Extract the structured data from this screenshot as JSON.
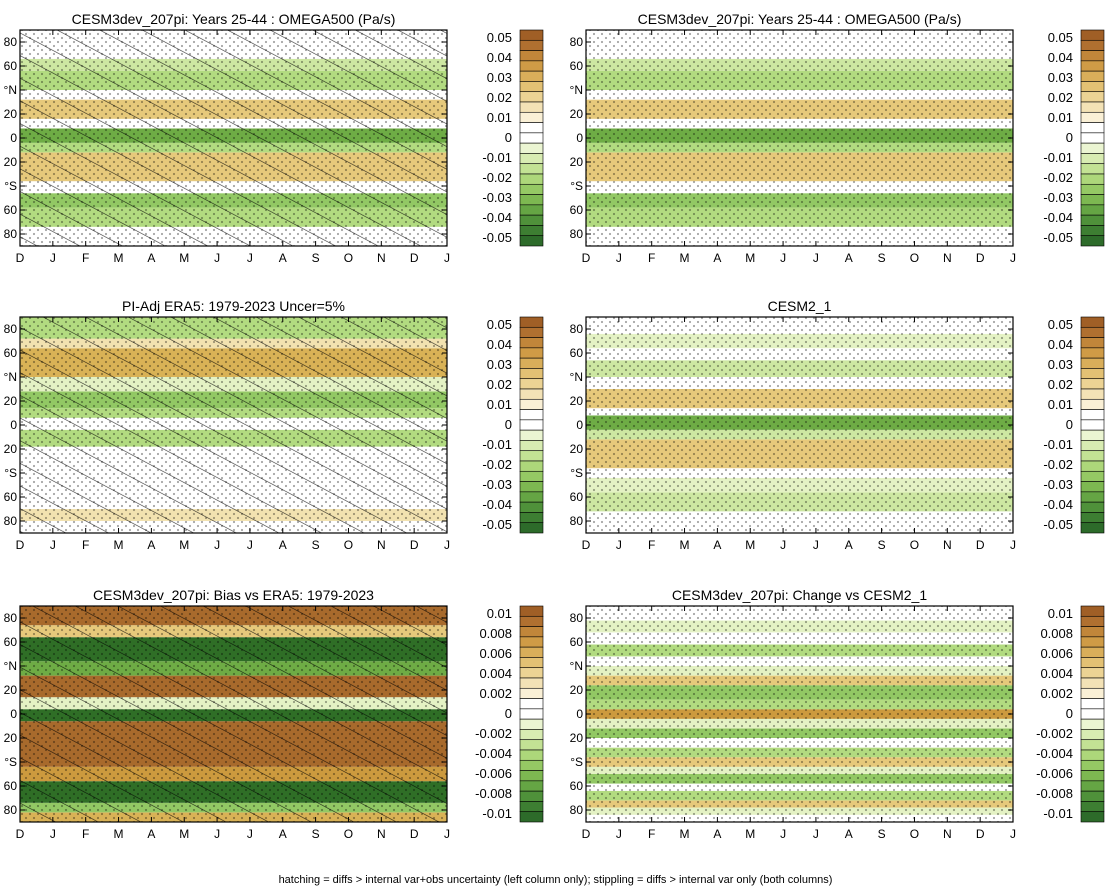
{
  "figure": {
    "footnote": "hatching = diffs > internal var+obs uncertainty (left column only); stippling = diffs > internal var only (both columns)"
  },
  "chart_data": [
    {
      "type": "heatmap",
      "title": "CESM3dev_207pi: Years 25-44 : OMEGA500 (Pa/s)",
      "x_tick_labels": [
        "D",
        "J",
        "F",
        "M",
        "A",
        "M",
        "J",
        "J",
        "A",
        "S",
        "O",
        "N",
        "D",
        "J"
      ],
      "y_tick_labels": [
        "80",
        "60",
        "°N",
        "20",
        "0",
        "20",
        "°S",
        "60",
        "80"
      ],
      "colorbar_labels": [
        "0.05",
        "0.04",
        "0.03",
        "0.02",
        "0.01",
        "0",
        "-0.01",
        "-0.02",
        "-0.03",
        "-0.04",
        "-0.05"
      ],
      "palette": "brown-white-green",
      "bands": [
        {
          "lat_from": -90,
          "lat_to": -82,
          "value": 0.008
        },
        {
          "lat_from": -82,
          "lat_to": -74,
          "value": 0.0
        },
        {
          "lat_from": -74,
          "lat_to": -58,
          "value": -0.02
        },
        {
          "lat_from": -58,
          "lat_to": -46,
          "value": -0.028
        },
        {
          "lat_from": -46,
          "lat_to": -36,
          "value": 0.004
        },
        {
          "lat_from": -36,
          "lat_to": -12,
          "value": 0.022
        },
        {
          "lat_from": -12,
          "lat_to": -4,
          "value": -0.02
        },
        {
          "lat_from": -4,
          "lat_to": 8,
          "value": -0.038
        },
        {
          "lat_from": 8,
          "lat_to": 16,
          "value": 0.004
        },
        {
          "lat_from": 16,
          "lat_to": 32,
          "value": 0.024
        },
        {
          "lat_from": 32,
          "lat_to": 40,
          "value": 0.004
        },
        {
          "lat_from": 40,
          "lat_to": 56,
          "value": -0.022
        },
        {
          "lat_from": 56,
          "lat_to": 66,
          "value": -0.012
        },
        {
          "lat_from": 66,
          "lat_to": 76,
          "value": 0.008
        },
        {
          "lat_from": 76,
          "lat_to": 90,
          "value": 0.0
        }
      ],
      "hatched": true,
      "stippled": true
    },
    {
      "type": "heatmap",
      "title": "CESM3dev_207pi: Years 25-44 : OMEGA500 (Pa/s)",
      "x_tick_labels": [
        "D",
        "J",
        "F",
        "M",
        "A",
        "M",
        "J",
        "J",
        "A",
        "S",
        "O",
        "N",
        "D",
        "J"
      ],
      "y_tick_labels": [
        "80",
        "60",
        "°N",
        "20",
        "0",
        "20",
        "°S",
        "60",
        "80"
      ],
      "colorbar_labels": [
        "0.05",
        "0.04",
        "0.03",
        "0.02",
        "0.01",
        "0",
        "-0.01",
        "-0.02",
        "-0.03",
        "-0.04",
        "-0.05"
      ],
      "palette": "brown-white-green",
      "bands": [
        {
          "lat_from": -90,
          "lat_to": -82,
          "value": 0.008
        },
        {
          "lat_from": -82,
          "lat_to": -74,
          "value": 0.0
        },
        {
          "lat_from": -74,
          "lat_to": -58,
          "value": -0.02
        },
        {
          "lat_from": -58,
          "lat_to": -46,
          "value": -0.028
        },
        {
          "lat_from": -46,
          "lat_to": -36,
          "value": 0.004
        },
        {
          "lat_from": -36,
          "lat_to": -12,
          "value": 0.022
        },
        {
          "lat_from": -12,
          "lat_to": -4,
          "value": -0.02
        },
        {
          "lat_from": -4,
          "lat_to": 8,
          "value": -0.038
        },
        {
          "lat_from": 8,
          "lat_to": 16,
          "value": 0.004
        },
        {
          "lat_from": 16,
          "lat_to": 32,
          "value": 0.024
        },
        {
          "lat_from": 32,
          "lat_to": 40,
          "value": 0.004
        },
        {
          "lat_from": 40,
          "lat_to": 56,
          "value": -0.022
        },
        {
          "lat_from": 56,
          "lat_to": 66,
          "value": -0.012
        },
        {
          "lat_from": 66,
          "lat_to": 76,
          "value": 0.008
        },
        {
          "lat_from": 76,
          "lat_to": 90,
          "value": 0.0
        }
      ],
      "hatched": false,
      "stippled": true
    },
    {
      "type": "heatmap",
      "title": "PI-Adj ERA5: 1979-2023 Uncer=5%",
      "x_tick_labels": [
        "D",
        "J",
        "F",
        "M",
        "A",
        "M",
        "J",
        "J",
        "A",
        "S",
        "O",
        "N",
        "D",
        "J"
      ],
      "y_tick_labels": [
        "80",
        "60",
        "°N",
        "20",
        "0",
        "20",
        "°S",
        "60",
        "80"
      ],
      "colorbar_labels": [
        "0.05",
        "0.04",
        "0.03",
        "0.02",
        "0.01",
        "0",
        "-0.01",
        "-0.02",
        "-0.03",
        "-0.04",
        "-0.05"
      ],
      "palette": "brown-white-green",
      "bands": [
        {
          "lat_from": -90,
          "lat_to": -80,
          "value": 0.006
        },
        {
          "lat_from": -80,
          "lat_to": -70,
          "value": 0.014
        },
        {
          "lat_from": -70,
          "lat_to": -56,
          "value": 0.004
        },
        {
          "lat_from": -56,
          "lat_to": -28,
          "value": -0.002
        },
        {
          "lat_from": -28,
          "lat_to": -18,
          "value": 0.004
        },
        {
          "lat_from": -18,
          "lat_to": -4,
          "value": -0.024
        },
        {
          "lat_from": -4,
          "lat_to": 6,
          "value": 0.0
        },
        {
          "lat_from": 6,
          "lat_to": 14,
          "value": -0.02
        },
        {
          "lat_from": 14,
          "lat_to": 28,
          "value": -0.028
        },
        {
          "lat_from": 28,
          "lat_to": 40,
          "value": -0.004
        },
        {
          "lat_from": 40,
          "lat_to": 64,
          "value": 0.026
        },
        {
          "lat_from": 64,
          "lat_to": 72,
          "value": 0.012
        },
        {
          "lat_from": 72,
          "lat_to": 90,
          "value": -0.02
        }
      ],
      "hatched": true,
      "stippled": true
    },
    {
      "type": "heatmap",
      "title": "CESM2_1",
      "x_tick_labels": [
        "D",
        "J",
        "F",
        "M",
        "A",
        "M",
        "J",
        "J",
        "A",
        "S",
        "O",
        "N",
        "D",
        "J"
      ],
      "y_tick_labels": [
        "80",
        "60",
        "°N",
        "20",
        "0",
        "20",
        "°S",
        "60",
        "80"
      ],
      "colorbar_labels": [
        "0.05",
        "0.04",
        "0.03",
        "0.02",
        "0.01",
        "0",
        "-0.01",
        "-0.02",
        "-0.03",
        "-0.04",
        "-0.05"
      ],
      "palette": "brown-white-green",
      "bands": [
        {
          "lat_from": -90,
          "lat_to": -82,
          "value": 0.006
        },
        {
          "lat_from": -82,
          "lat_to": -72,
          "value": 0.0
        },
        {
          "lat_from": -72,
          "lat_to": -56,
          "value": -0.018
        },
        {
          "lat_from": -56,
          "lat_to": -44,
          "value": -0.01
        },
        {
          "lat_from": -44,
          "lat_to": -36,
          "value": 0.004
        },
        {
          "lat_from": -36,
          "lat_to": -12,
          "value": 0.02
        },
        {
          "lat_from": -12,
          "lat_to": -4,
          "value": -0.016
        },
        {
          "lat_from": -4,
          "lat_to": 8,
          "value": -0.034
        },
        {
          "lat_from": 8,
          "lat_to": 14,
          "value": 0.004
        },
        {
          "lat_from": 14,
          "lat_to": 30,
          "value": 0.024
        },
        {
          "lat_from": 30,
          "lat_to": 40,
          "value": 0.006
        },
        {
          "lat_from": 40,
          "lat_to": 54,
          "value": -0.012
        },
        {
          "lat_from": 54,
          "lat_to": 64,
          "value": 0.0
        },
        {
          "lat_from": 64,
          "lat_to": 76,
          "value": -0.01
        },
        {
          "lat_from": 76,
          "lat_to": 90,
          "value": 0.0
        }
      ],
      "hatched": false,
      "stippled": true
    },
    {
      "type": "heatmap",
      "title": "CESM3dev_207pi: Bias vs ERA5: 1979-2023",
      "x_tick_labels": [
        "D",
        "J",
        "F",
        "M",
        "A",
        "M",
        "J",
        "J",
        "A",
        "S",
        "O",
        "N",
        "D",
        "J"
      ],
      "y_tick_labels": [
        "80",
        "60",
        "°N",
        "20",
        "0",
        "20",
        "°S",
        "60",
        "80"
      ],
      "colorbar_labels": [
        "0.01",
        "0.008",
        "0.006",
        "0.004",
        "0.002",
        "0",
        "-0.002",
        "-0.004",
        "-0.006",
        "-0.008",
        "-0.01"
      ],
      "palette": "brown-white-green",
      "bands": [
        {
          "lat_from": -90,
          "lat_to": -82,
          "value": 0.006
        },
        {
          "lat_from": -82,
          "lat_to": -74,
          "value": -0.006
        },
        {
          "lat_from": -74,
          "lat_to": -56,
          "value": -0.011
        },
        {
          "lat_from": -56,
          "lat_to": -44,
          "value": 0.008
        },
        {
          "lat_from": -44,
          "lat_to": -6,
          "value": 0.011
        },
        {
          "lat_from": -6,
          "lat_to": 4,
          "value": -0.011
        },
        {
          "lat_from": 4,
          "lat_to": 14,
          "value": -0.002
        },
        {
          "lat_from": 14,
          "lat_to": 32,
          "value": 0.01
        },
        {
          "lat_from": 32,
          "lat_to": 44,
          "value": -0.008
        },
        {
          "lat_from": 44,
          "lat_to": 64,
          "value": -0.011
        },
        {
          "lat_from": 64,
          "lat_to": 74,
          "value": 0.004
        },
        {
          "lat_from": 74,
          "lat_to": 90,
          "value": 0.011
        }
      ],
      "hatched": true,
      "stippled": true
    },
    {
      "type": "heatmap",
      "title": "CESM3dev_207pi: Change vs CESM2_1",
      "x_tick_labels": [
        "D",
        "J",
        "F",
        "M",
        "A",
        "M",
        "J",
        "J",
        "A",
        "S",
        "O",
        "N",
        "D",
        "J"
      ],
      "y_tick_labels": [
        "80",
        "60",
        "°N",
        "20",
        "0",
        "20",
        "°S",
        "60",
        "80"
      ],
      "colorbar_labels": [
        "0.01",
        "0.008",
        "0.006",
        "0.004",
        "0.002",
        "0",
        "-0.002",
        "-0.004",
        "-0.006",
        "-0.008",
        "-0.01"
      ],
      "palette": "brown-white-green",
      "bands": [
        {
          "lat_from": -90,
          "lat_to": -84,
          "value": 0.002
        },
        {
          "lat_from": -84,
          "lat_to": -78,
          "value": -0.002
        },
        {
          "lat_from": -78,
          "lat_to": -72,
          "value": 0.004
        },
        {
          "lat_from": -72,
          "lat_to": -64,
          "value": -0.004
        },
        {
          "lat_from": -64,
          "lat_to": -58,
          "value": 0.002
        },
        {
          "lat_from": -58,
          "lat_to": -50,
          "value": -0.006
        },
        {
          "lat_from": -50,
          "lat_to": -44,
          "value": -0.002
        },
        {
          "lat_from": -44,
          "lat_to": -36,
          "value": 0.004
        },
        {
          "lat_from": -36,
          "lat_to": -28,
          "value": -0.004
        },
        {
          "lat_from": -28,
          "lat_to": -20,
          "value": 0.002
        },
        {
          "lat_from": -20,
          "lat_to": -12,
          "value": -0.006
        },
        {
          "lat_from": -12,
          "lat_to": -4,
          "value": -0.002
        },
        {
          "lat_from": -4,
          "lat_to": 4,
          "value": 0.008
        },
        {
          "lat_from": 4,
          "lat_to": 12,
          "value": -0.004
        },
        {
          "lat_from": 12,
          "lat_to": 24,
          "value": -0.006
        },
        {
          "lat_from": 24,
          "lat_to": 32,
          "value": 0.004
        },
        {
          "lat_from": 32,
          "lat_to": 40,
          "value": -0.002
        },
        {
          "lat_from": 40,
          "lat_to": 48,
          "value": 0.002
        },
        {
          "lat_from": 48,
          "lat_to": 58,
          "value": -0.004
        },
        {
          "lat_from": 58,
          "lat_to": 68,
          "value": 0.0
        },
        {
          "lat_from": 68,
          "lat_to": 78,
          "value": -0.002
        },
        {
          "lat_from": 78,
          "lat_to": 90,
          "value": 0.002
        }
      ],
      "hatched": false,
      "stippled": true
    }
  ]
}
